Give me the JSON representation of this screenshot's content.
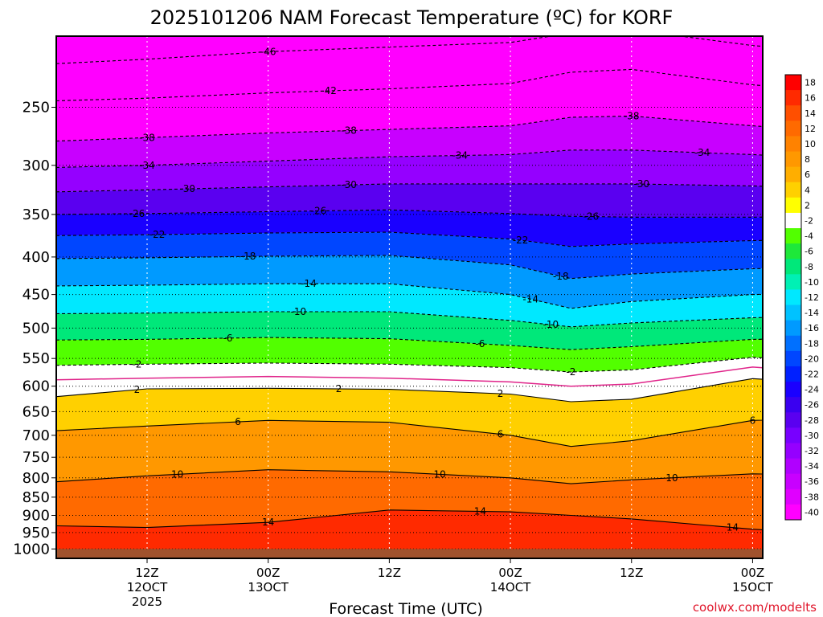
{
  "chart_data": {
    "type": "heatmap",
    "title": "2025101206 NAM Forecast Temperature (ºC) for KORF",
    "xlabel": "Forecast Time (UTC)",
    "ylabel": "",
    "credit": "coolwx.com/modelts",
    "y_axis": {
      "scale": "log-pressure",
      "range": [
        200,
        1030
      ],
      "ticks": [
        "250",
        "300",
        "350",
        "400",
        "450",
        "500",
        "550",
        "600",
        "650",
        "700",
        "750",
        "800",
        "850",
        "900",
        "950",
        "1000"
      ],
      "tick_values": [
        250,
        300,
        350,
        400,
        450,
        500,
        550,
        600,
        650,
        700,
        750,
        800,
        850,
        900,
        950,
        1000
      ]
    },
    "x_axis": {
      "range_hours": [
        -3,
        67
      ],
      "ticks": [
        {
          "hour": 6,
          "line1": "12Z",
          "line2": "12OCT",
          "line3": "2025"
        },
        {
          "hour": 18,
          "line1": "00Z",
          "line2": "13OCT",
          "line3": ""
        },
        {
          "hour": 30,
          "line1": "12Z",
          "line2": "",
          "line3": ""
        },
        {
          "hour": 42,
          "line1": "00Z",
          "line2": "14OCT",
          "line3": ""
        },
        {
          "hour": 54,
          "line1": "12Z",
          "line2": "",
          "line3": ""
        },
        {
          "hour": 66,
          "line1": "00Z",
          "line2": "15OCT",
          "line3": ""
        },
        {
          "hour": 78,
          "line1": "12Z",
          "line2": "",
          "line3": ""
        }
      ]
    },
    "colorbar": {
      "labels": [
        "18",
        "16",
        "14",
        "12",
        "10",
        "8",
        "6",
        "4",
        "2",
        "-2",
        "-4",
        "-6",
        "-8",
        "-10",
        "-12",
        "-14",
        "-16",
        "-18",
        "-20",
        "-22",
        "-24",
        "-26",
        "-28",
        "-30",
        "-32",
        "-34",
        "-36",
        "-38",
        "-40"
      ],
      "colors": [
        "#ff0000",
        "#ff2a00",
        "#ff4f00",
        "#ff6a00",
        "#ff8200",
        "#ff9800",
        "#ffae00",
        "#ffd000",
        "#ffff00",
        "#ffffff",
        "#52ff00",
        "#1ee83a",
        "#00e87a",
        "#00f0b4",
        "#00e8ff",
        "#00c2ff",
        "#009aff",
        "#0070ff",
        "#0046ff",
        "#0020ff",
        "#1a00ff",
        "#3a00f0",
        "#5a00f0",
        "#7800ff",
        "#9500ff",
        "#b000ff",
        "#c800ff",
        "#e000ff",
        "#ff00ff"
      ]
    },
    "profile_hours": [
      -3,
      6,
      18,
      30,
      42,
      48,
      54,
      66,
      78,
      86
    ],
    "isotherms": [
      {
        "label": "-46",
        "pressure": [
          218,
          215,
          210,
          207,
          204,
          198,
          196,
          206,
          212,
          216
        ],
        "label_at": [
          [
            18,
            -46
          ],
          [
            70,
            -46
          ]
        ]
      },
      {
        "label": "-42",
        "pressure": [
          245,
          243,
          239,
          236,
          232,
          224,
          222,
          233,
          240,
          244
        ],
        "label_at": [
          [
            24,
            -42
          ]
        ]
      },
      {
        "label": "-38",
        "pressure": [
          278,
          275,
          271,
          268,
          265,
          258,
          257,
          265,
          272,
          276
        ],
        "label_at": [
          [
            6,
            -38
          ],
          [
            26,
            -38
          ],
          [
            54,
            -38
          ]
        ]
      },
      {
        "label": "-34",
        "pressure": [
          302,
          300,
          296,
          292,
          290,
          286,
          286,
          290,
          296,
          300
        ],
        "label_at": [
          [
            6,
            -34
          ],
          [
            37,
            -34
          ],
          [
            61,
            -34
          ]
        ]
      },
      {
        "label": "-30",
        "pressure": [
          326,
          324,
          321,
          318,
          318,
          318,
          318,
          320,
          324,
          327
        ],
        "label_at": [
          [
            10,
            -30
          ],
          [
            26,
            -30
          ],
          [
            55,
            -30
          ]
        ]
      },
      {
        "label": "-26",
        "pressure": [
          350,
          349,
          347,
          345,
          349,
          352,
          353,
          353,
          352,
          352
        ],
        "label_at": [
          [
            5,
            -26
          ],
          [
            23,
            -26
          ],
          [
            50,
            -26
          ],
          [
            73,
            -26
          ]
        ]
      },
      {
        "label": "-22",
        "pressure": [
          374,
          373,
          371,
          370,
          378,
          387,
          384,
          380,
          378,
          377
        ],
        "label_at": [
          [
            7,
            -22
          ],
          [
            43,
            -22
          ],
          [
            73,
            -22
          ]
        ]
      },
      {
        "label": "-18",
        "pressure": [
          402,
          401,
          399,
          398,
          410,
          428,
          422,
          415,
          412,
          410
        ],
        "label_at": [
          [
            16,
            -18
          ],
          [
            47,
            -18
          ],
          [
            71,
            -18
          ]
        ]
      },
      {
        "label": "-14",
        "pressure": [
          438,
          437,
          435,
          435,
          450,
          470,
          460,
          450,
          447,
          445
        ],
        "label_at": [
          [
            22,
            -14
          ],
          [
            44,
            -14
          ],
          [
            68,
            -14
          ]
        ]
      },
      {
        "label": "-10",
        "pressure": [
          478,
          477,
          475,
          475,
          488,
          498,
          492,
          484,
          480,
          478
        ],
        "label_at": [
          [
            21,
            -10
          ],
          [
            46,
            -10
          ],
          [
            70,
            -10
          ]
        ]
      },
      {
        "label": "-6",
        "pressure": [
          519,
          518,
          515,
          517,
          528,
          535,
          530,
          518,
          515,
          513
        ],
        "label_at": [
          [
            14,
            -6
          ],
          [
            39,
            -6
          ],
          [
            67,
            -6
          ]
        ]
      },
      {
        "label": "-2",
        "pressure": [
          562,
          560,
          558,
          560,
          566,
          574,
          570,
          548,
          560,
          582
        ],
        "label_at": [
          [
            5,
            -2
          ],
          [
            48,
            -2
          ],
          [
            69,
            -2
          ]
        ]
      },
      {
        "label": "2",
        "pressure": [
          620,
          605,
          604,
          606,
          615,
          630,
          625,
          586,
          600,
          630
        ],
        "label_at": [
          [
            5,
            2
          ],
          [
            25,
            2
          ],
          [
            68,
            2
          ],
          [
            41,
            2
          ]
        ]
      },
      {
        "label": "6",
        "pressure": [
          690,
          680,
          668,
          672,
          700,
          725,
          712,
          668,
          662,
          700
        ],
        "label_at": [
          [
            15,
            6
          ],
          [
            41,
            6
          ],
          [
            66,
            6
          ]
        ]
      },
      {
        "label": "10",
        "pressure": [
          810,
          795,
          780,
          785,
          800,
          815,
          805,
          790,
          795,
          830
        ],
        "label_at": [
          [
            9,
            10
          ],
          [
            35,
            10
          ],
          [
            58,
            10
          ],
          [
            79,
            10
          ]
        ]
      },
      {
        "label": "14",
        "pressure": [
          930,
          935,
          920,
          885,
          890,
          900,
          910,
          940,
          960,
          960
        ],
        "label_at": [
          [
            18,
            14
          ],
          [
            39,
            14
          ],
          [
            64,
            14
          ]
        ]
      }
    ],
    "freezing_line": {
      "label": "0",
      "pressure": [
        588,
        585,
        582,
        585,
        592,
        600,
        596,
        565,
        580,
        610
      ]
    },
    "surface_pressure": 1000
  }
}
